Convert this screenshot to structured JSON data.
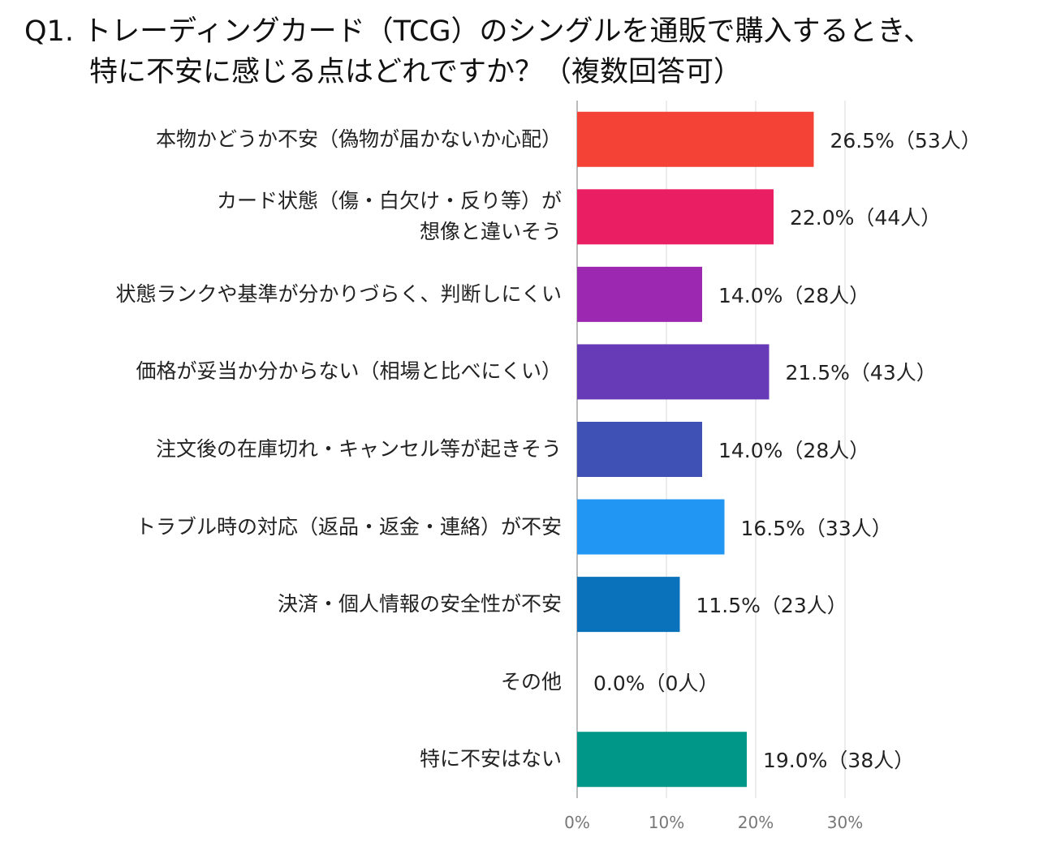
{
  "chart_data": {
    "type": "bar",
    "orientation": "horizontal",
    "title": "Q1. トレーディングカード（TCG）のシングルを通販で購入するとき、\n特に不安に感じる点はどれですか？（複数回答可）",
    "categories": [
      "本物かどうか不安（偽物が届かないか心配）",
      "カード状態（傷・白欠け・反り等）が\n想像と違いそう",
      "状態ランクや基準が分かりづらく、判断しにくい",
      "価格が妥当か分からない（相場と比べにくい）",
      "注文後の在庫切れ・キャンセル等が起きそう",
      "トラブル時の対応（返品・返金・連絡）が不安",
      "決済・個人情報の安全性が不安",
      "その他",
      "特に不安はない"
    ],
    "values": [
      26.5,
      22.0,
      14.0,
      21.5,
      14.0,
      16.5,
      11.5,
      0.0,
      19.0
    ],
    "value_labels": [
      "26.5%（53人）",
      "22.0%（44人）",
      "14.0%（28人）",
      "21.5%（43人）",
      "14.0%（28人）",
      "16.5%（33人）",
      "11.5%（23人）",
      "0.0%（0人）",
      "19.0%（38人）"
    ],
    "colors": [
      "#f44336",
      "#e91e63",
      "#9c27b0",
      "#673ab7",
      "#3f51b5",
      "#2196f3",
      "#0a72ba",
      "#9e9e9e",
      "#009688"
    ],
    "xlim": [
      0,
      35
    ],
    "xticks": [
      {
        "value": 0,
        "label": "0%"
      },
      {
        "value": 10,
        "label": "10%"
      },
      {
        "value": 20,
        "label": "20%"
      },
      {
        "value": 30,
        "label": "30%"
      }
    ],
    "grid": true
  }
}
